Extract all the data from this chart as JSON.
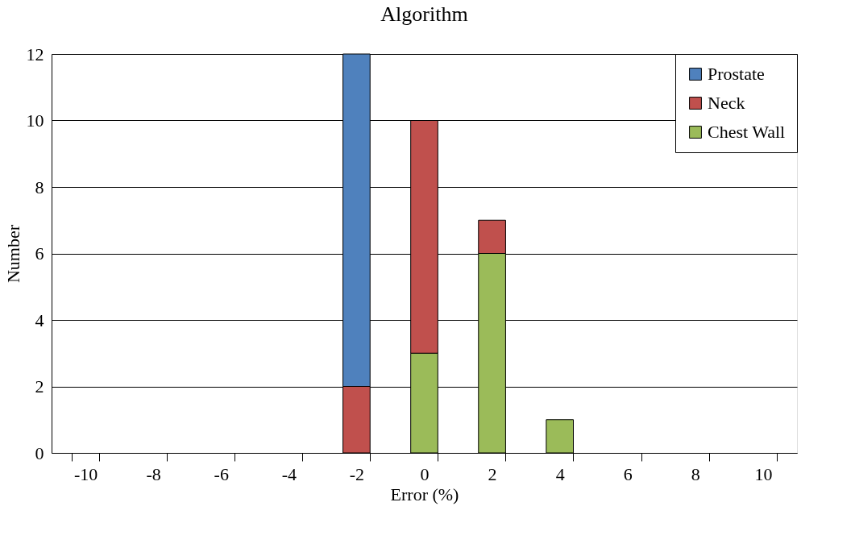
{
  "chart_data": {
    "type": "bar",
    "title": "Algorithm",
    "xlabel": "Error (%)",
    "ylabel": "Number",
    "categories": [
      "-10",
      "-8",
      "-6",
      "-4",
      "-2",
      "0",
      "2",
      "4",
      "6",
      "8",
      "10"
    ],
    "stacked": true,
    "series": [
      {
        "name": "Chest Wall",
        "color": "#9bbb59",
        "values": [
          null,
          null,
          null,
          null,
          null,
          3,
          6,
          1,
          null,
          null,
          null
        ]
      },
      {
        "name": "Neck",
        "color": "#c0504d",
        "values": [
          null,
          null,
          null,
          null,
          2,
          7,
          1,
          null,
          null,
          null,
          null
        ]
      },
      {
        "name": "Prostate",
        "color": "#4f81bd",
        "values": [
          null,
          null,
          null,
          null,
          10,
          null,
          null,
          null,
          null,
          null,
          null
        ]
      }
    ],
    "ylim": [
      0,
      12
    ],
    "yticks": [
      0,
      2,
      4,
      6,
      8,
      10,
      12
    ],
    "grid": "y",
    "legend": "top right"
  }
}
